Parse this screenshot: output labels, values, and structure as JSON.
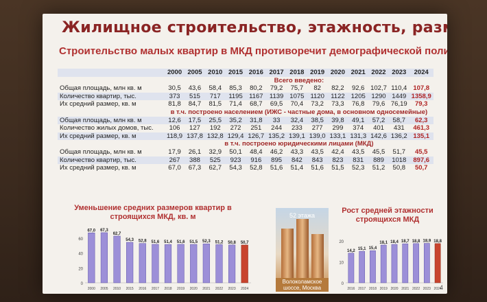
{
  "title": "Жилищное строительство, этажность, размеры квартир",
  "subtitle": "Строительство малых квартир в МКД противоречит демографической политике страны",
  "years": [
    "2000",
    "2005",
    "2010",
    "2015",
    "2016",
    "2017",
    "2018",
    "2019",
    "2020",
    "2021",
    "2022",
    "2023",
    "2024"
  ],
  "sections": [
    {
      "heading": "Всего введено:",
      "rows": [
        {
          "label": "Общая площадь, млн кв. м",
          "values": [
            "30,5",
            "43,6",
            "58,4",
            "85,3",
            "80,2",
            "79,2",
            "75,7",
            "82",
            "82,2",
            "92,6",
            "102,7",
            "110,4",
            "107,8"
          ]
        },
        {
          "label": "Количество квартир, тыс.",
          "values": [
            "373",
            "515",
            "717",
            "1195",
            "1167",
            "1139",
            "1075",
            "1120",
            "1122",
            "1205",
            "1290",
            "1449",
            "1358,9"
          ]
        },
        {
          "label": "Их средний размер, кв. м",
          "values": [
            "81,8",
            "84,7",
            "81,5",
            "71,4",
            "68,7",
            "69,5",
            "70,4",
            "73,2",
            "73,3",
            "76,8",
            "79,6",
            "76,19",
            "79,3"
          ]
        }
      ]
    },
    {
      "heading": "в т.ч. построено населением (ИЖС - частные дома, в основном односемейные)",
      "rows": [
        {
          "label": "Общая площадь, млн кв. м",
          "values": [
            "12,6",
            "17,5",
            "25,5",
            "35,2",
            "31,8",
            "33",
            "32,4",
            "38,5",
            "39,8",
            "49,1",
            "57,2",
            "58,7",
            "62,3"
          ]
        },
        {
          "label": "Количество жилых домов, тыс.",
          "values": [
            "106",
            "127",
            "192",
            "272",
            "251",
            "244",
            "233",
            "277",
            "299",
            "374",
            "401",
            "431",
            "461,3"
          ]
        },
        {
          "label": "Их средний размер, кв. м",
          "values": [
            "118,9",
            "137,8",
            "132,8",
            "129,4",
            "126,7",
            "135,2",
            "139,1",
            "139,0",
            "133,1",
            "131,3",
            "142,6",
            "136,2",
            "135,1"
          ]
        }
      ]
    },
    {
      "heading": "в т.ч. построено юридическими лицами (МКД)",
      "rows": [
        {
          "label": "Общая площадь, млн кв. м",
          "values": [
            "17,9",
            "26,1",
            "32,9",
            "50,1",
            "48,4",
            "46,2",
            "43,3",
            "43,5",
            "42,4",
            "43,5",
            "45,5",
            "51,7",
            "45,5"
          ]
        },
        {
          "label": "Количество квартир, тыс.",
          "values": [
            "267",
            "388",
            "525",
            "923",
            "916",
            "895",
            "842",
            "843",
            "823",
            "831",
            "889",
            "1018",
            "897,6"
          ]
        },
        {
          "label": "Их средний размер, кв. м",
          "values": [
            "67,0",
            "67,3",
            "62,7",
            "54,3",
            "52,8",
            "51,6",
            "51,4",
            "51,6",
            "51,5",
            "52,3",
            "51,2",
            "50,8",
            "50,7"
          ]
        }
      ]
    }
  ],
  "photo": {
    "top": "52 этажа",
    "caption": "Волоколамское шоссе, Москва"
  },
  "page_number": "4",
  "colors": {
    "bar": "#9c8fd8",
    "bar_last": "#c8442e",
    "title": "#8a2424"
  },
  "chart_data": [
    {
      "type": "bar",
      "title": "Уменьшение средних размеров квартир в строящихся МКД, кв. м",
      "categories": [
        "2000",
        "2005",
        "2010",
        "2015",
        "2016",
        "2017",
        "2018",
        "2019",
        "2020",
        "2021",
        "2022",
        "2023",
        "2024"
      ],
      "values": [
        67.0,
        67.3,
        62.7,
        54.3,
        52.8,
        51.6,
        51.4,
        51.6,
        51.5,
        52.3,
        51.2,
        50.8,
        50.7
      ],
      "labels": [
        "67,0",
        "67,3",
        "62,7",
        "54,3",
        "52,8",
        "51,6",
        "51,4",
        "51,6",
        "51,5",
        "52,3",
        "51,2",
        "50,8",
        "50,7"
      ],
      "yticks": [
        "0",
        "20",
        "40",
        "60"
      ],
      "ylim": [
        0,
        70
      ]
    },
    {
      "type": "bar",
      "title": "Рост средней этажности строящихся МКД",
      "categories": [
        "2016",
        "2017",
        "2018",
        "2019",
        "2020",
        "2021",
        "2022",
        "2023",
        "2024"
      ],
      "values": [
        14.2,
        15.1,
        15.4,
        18.1,
        18.4,
        18.7,
        18.8,
        18.9,
        18.8
      ],
      "labels": [
        "14,2",
        "15,1",
        "15,4",
        "18,1",
        "18,4",
        "18,7",
        "18,8",
        "18,9",
        "18,8"
      ],
      "yticks": [
        "0",
        "10",
        "20"
      ],
      "ylim": [
        0,
        25
      ]
    }
  ]
}
